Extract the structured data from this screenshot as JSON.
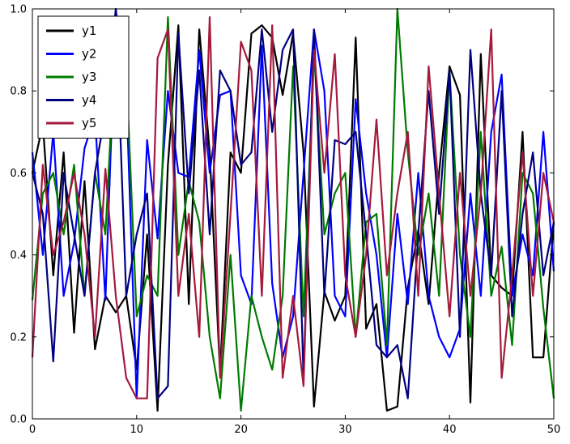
{
  "figure": {
    "background": "#ffffff",
    "frame_color": "#000000"
  },
  "chart_data": {
    "type": "line",
    "title": "",
    "xlabel": "",
    "ylabel": "",
    "xlim": [
      0,
      50
    ],
    "ylim": [
      0.0,
      1.0
    ],
    "grid": false,
    "legend_position": "upper-left",
    "xticks": [
      0,
      10,
      20,
      30,
      40,
      50
    ],
    "xtick_labels": [
      "0",
      "10",
      "20",
      "30",
      "40",
      "50"
    ],
    "yticks": [
      0.0,
      0.2,
      0.4,
      0.6,
      0.8,
      1.0
    ],
    "ytick_labels": [
      "0.0",
      "0.2",
      "0.4",
      "0.6",
      "0.8",
      "1.0"
    ],
    "x": [
      0,
      1,
      2,
      3,
      4,
      5,
      6,
      7,
      8,
      9,
      10,
      11,
      12,
      13,
      14,
      15,
      16,
      17,
      18,
      19,
      20,
      21,
      22,
      23,
      24,
      25,
      26,
      27,
      28,
      29,
      30,
      31,
      32,
      33,
      34,
      35,
      36,
      37,
      38,
      39,
      40,
      41,
      42,
      43,
      44,
      45,
      46,
      47,
      48,
      49,
      50
    ],
    "series": [
      {
        "name": "y1",
        "color": "#000000",
        "values": [
          0.6,
          0.72,
          0.35,
          0.65,
          0.21,
          0.58,
          0.17,
          0.3,
          0.26,
          0.3,
          0.12,
          0.45,
          0.02,
          0.62,
          0.96,
          0.28,
          0.95,
          0.65,
          0.11,
          0.65,
          0.6,
          0.94,
          0.96,
          0.93,
          0.79,
          0.94,
          0.65,
          0.03,
          0.31,
          0.24,
          0.3,
          0.93,
          0.22,
          0.28,
          0.02,
          0.03,
          0.32,
          0.46,
          0.28,
          0.6,
          0.86,
          0.79,
          0.04,
          0.89,
          0.35,
          0.32,
          0.3,
          0.7,
          0.15,
          0.15,
          0.48
        ]
      },
      {
        "name": "y2",
        "color": "#0000ff",
        "values": [
          0.65,
          0.4,
          0.7,
          0.3,
          0.43,
          0.66,
          0.74,
          0.29,
          1.0,
          0.8,
          0.05,
          0.68,
          0.44,
          0.8,
          0.6,
          0.59,
          0.9,
          0.6,
          0.79,
          0.8,
          0.35,
          0.28,
          0.91,
          0.33,
          0.15,
          0.25,
          0.6,
          0.95,
          0.8,
          0.3,
          0.25,
          0.78,
          0.55,
          0.4,
          0.15,
          0.5,
          0.28,
          0.6,
          0.3,
          0.2,
          0.15,
          0.22,
          0.55,
          0.3,
          0.7,
          0.84,
          0.3,
          0.45,
          0.35,
          0.7,
          0.36
        ]
      },
      {
        "name": "y3",
        "color": "#007a00",
        "values": [
          0.29,
          0.55,
          0.6,
          0.45,
          0.62,
          0.3,
          0.6,
          0.45,
          0.94,
          0.85,
          0.25,
          0.35,
          0.3,
          0.98,
          0.4,
          0.58,
          0.48,
          0.2,
          0.05,
          0.4,
          0.02,
          0.3,
          0.2,
          0.12,
          0.3,
          0.86,
          0.25,
          0.9,
          0.45,
          0.55,
          0.6,
          0.2,
          0.48,
          0.5,
          0.18,
          1.0,
          0.65,
          0.4,
          0.55,
          0.3,
          0.85,
          0.4,
          0.2,
          0.7,
          0.3,
          0.42,
          0.18,
          0.6,
          0.55,
          0.27,
          0.05
        ]
      },
      {
        "name": "y4",
        "color": "#000080",
        "values": [
          0.6,
          0.5,
          0.14,
          0.6,
          0.45,
          0.3,
          0.6,
          0.75,
          1.0,
          0.3,
          0.45,
          0.55,
          0.05,
          0.08,
          0.94,
          0.55,
          0.85,
          0.45,
          0.85,
          0.8,
          0.62,
          0.65,
          0.95,
          0.7,
          0.9,
          0.95,
          0.1,
          0.95,
          0.3,
          0.68,
          0.67,
          0.7,
          0.45,
          0.18,
          0.15,
          0.18,
          0.05,
          0.45,
          0.8,
          0.5,
          0.85,
          0.2,
          0.9,
          0.55,
          0.35,
          0.8,
          0.25,
          0.5,
          0.65,
          0.35,
          0.48
        ]
      },
      {
        "name": "y5",
        "color": "#a5193d",
        "values": [
          0.15,
          0.62,
          0.4,
          0.48,
          0.6,
          0.45,
          0.2,
          0.61,
          0.3,
          0.1,
          0.05,
          0.05,
          0.88,
          0.95,
          0.3,
          0.5,
          0.2,
          0.98,
          0.1,
          0.5,
          0.92,
          0.85,
          0.3,
          0.96,
          0.1,
          0.3,
          0.08,
          0.9,
          0.6,
          0.89,
          0.35,
          0.2,
          0.4,
          0.73,
          0.35,
          0.55,
          0.7,
          0.3,
          0.86,
          0.55,
          0.25,
          0.6,
          0.3,
          0.55,
          0.95,
          0.1,
          0.35,
          0.65,
          0.3,
          0.6,
          0.48
        ]
      }
    ]
  }
}
